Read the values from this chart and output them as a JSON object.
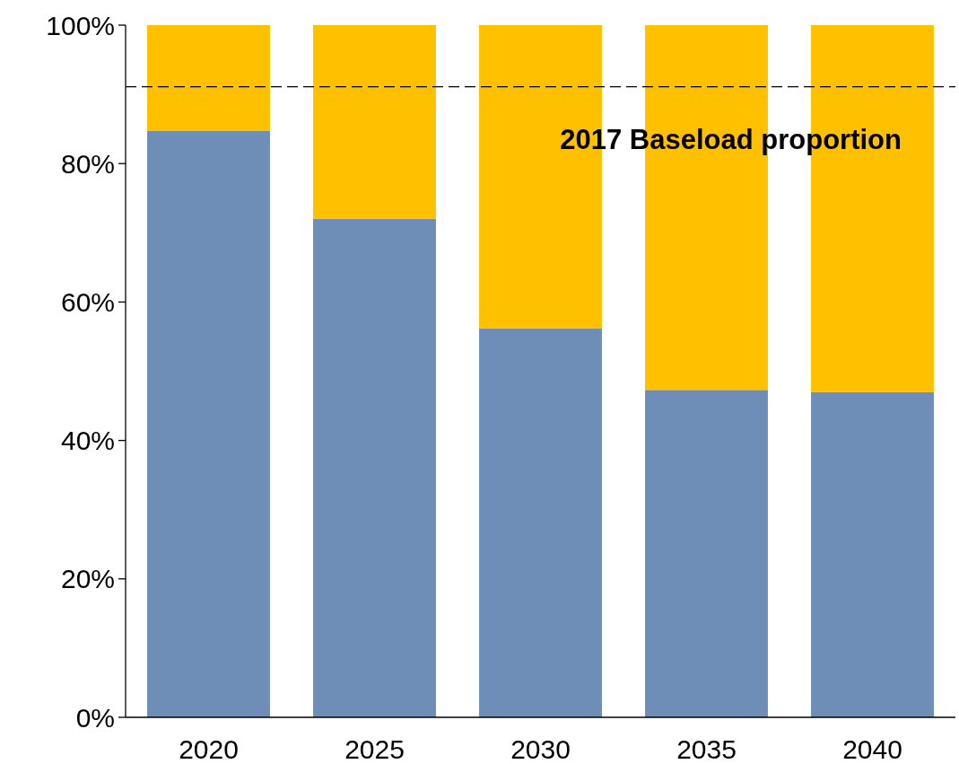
{
  "chart_data": {
    "type": "bar",
    "stacked": true,
    "categories": [
      "2020",
      "2025",
      "2030",
      "2035",
      "2040"
    ],
    "series": [
      {
        "color": "#6e8eb8",
        "values": [
          84.7,
          72.0,
          56.2,
          47.3,
          47.0
        ]
      },
      {
        "color": "#ffc000",
        "values": [
          15.3,
          28.0,
          43.8,
          52.7,
          53.0
        ]
      }
    ],
    "ylim": [
      0,
      100
    ],
    "yticks": [
      {
        "value": 0,
        "label": "0%"
      },
      {
        "value": 20,
        "label": "20%"
      },
      {
        "value": 40,
        "label": "40%"
      },
      {
        "value": 60,
        "label": "60%"
      },
      {
        "value": 80,
        "label": "80%"
      },
      {
        "value": 100,
        "label": "100%"
      }
    ],
    "ref_lines": [
      {
        "axis": "y",
        "value": 91.1,
        "label": "2017 Baseload proportion",
        "color": "#000000",
        "line_style": "dashed"
      }
    ],
    "grid": false
  }
}
